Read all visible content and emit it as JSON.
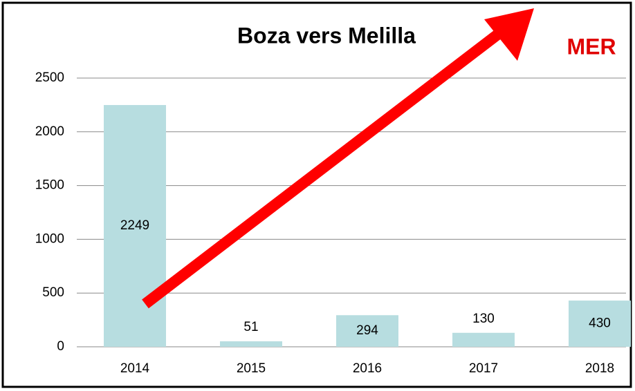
{
  "chart_data": {
    "type": "bar",
    "title": "Boza vers Melilla",
    "annotation": "MER",
    "categories": [
      "2014",
      "2015",
      "2016",
      "2017",
      "2018"
    ],
    "values": [
      2249,
      51,
      294,
      130,
      430
    ],
    "color": "#b7dde0",
    "ylim": [
      0,
      2500
    ],
    "yticks": [
      0,
      500,
      1000,
      1500,
      2000,
      2500
    ],
    "grid": true
  }
}
